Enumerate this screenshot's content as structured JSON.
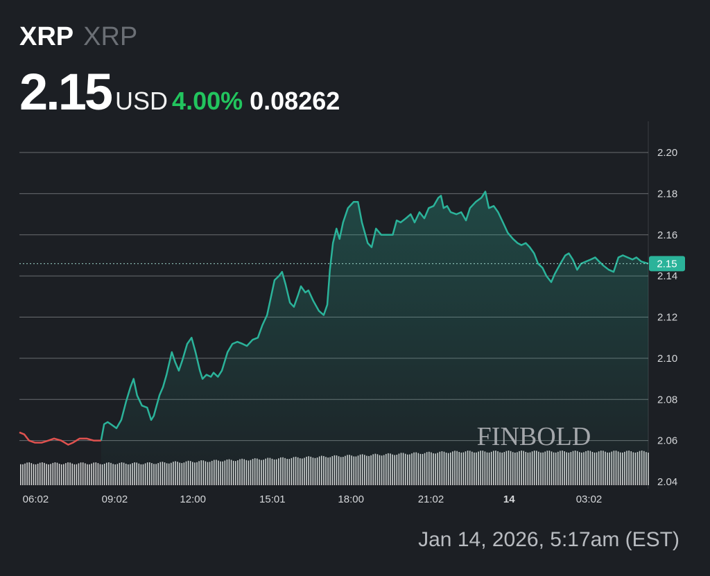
{
  "header": {
    "symbol": "XRP",
    "name": "XRP",
    "price": "2.15",
    "currency": "USD",
    "change_percent": "4.00%",
    "change_abs": "0.08262"
  },
  "timestamp": "Jan 14, 2026, 5:17am (EST)",
  "watermark": "FINBOLD",
  "colors": {
    "up": "#2bb39a",
    "down": "#e0524f",
    "background": "#1c1f24",
    "positive_text": "#22c55e"
  },
  "chart_data": {
    "type": "line",
    "title": "",
    "xlabel": "",
    "ylabel": "",
    "ylim": [
      2.04,
      2.2
    ],
    "y_ticks": [
      "2.04",
      "2.06",
      "2.08",
      "2.10",
      "2.12",
      "2.14",
      "2.16",
      "2.18",
      "2.20"
    ],
    "x_ticks": [
      {
        "label": "06:02",
        "time": "06:02",
        "bold": false
      },
      {
        "label": "09:02",
        "time": "09:02",
        "bold": false
      },
      {
        "label": "12:00",
        "time": "12:00",
        "bold": false
      },
      {
        "label": "15:01",
        "time": "15:01",
        "bold": false
      },
      {
        "label": "18:00",
        "time": "18:00",
        "bold": false
      },
      {
        "label": "21:02",
        "time": "21:02",
        "bold": false
      },
      {
        "label": "14",
        "time": "00:00",
        "bold": true
      },
      {
        "label": "03:02",
        "time": "03:02",
        "bold": false
      }
    ],
    "current_price_label": "2.15",
    "current_price": 2.146,
    "grid": true,
    "down_segment_until": "08:31",
    "series": [
      {
        "x": [
          "05:25",
          "05:36",
          "05:47",
          "06:00",
          "06:16",
          "06:31",
          "06:44",
          "07:00",
          "07:16",
          "07:27",
          "07:42",
          "07:58",
          "08:14",
          "08:31",
          "08:38",
          "08:46",
          "08:53",
          "09:06",
          "09:17",
          "09:28",
          "09:38",
          "09:45",
          "09:53",
          "10:04",
          "10:16",
          "10:25",
          "10:31",
          "10:44",
          "10:52",
          "11:00",
          "11:12",
          "11:20",
          "11:28",
          "11:36",
          "11:47",
          "11:57",
          "12:06",
          "12:16",
          "12:22",
          "12:31",
          "12:41",
          "12:47",
          "12:57",
          "13:06",
          "13:19",
          "13:30",
          "13:41",
          "13:53",
          "14:03",
          "14:16",
          "14:28",
          "14:38",
          "14:49",
          "14:57",
          "15:06",
          "15:16",
          "15:23",
          "15:31",
          "15:41",
          "15:50",
          "16:00",
          "16:06",
          "16:16",
          "16:23",
          "16:34",
          "16:47",
          "16:58",
          "17:06",
          "17:12",
          "17:19",
          "17:27",
          "17:34",
          "17:42",
          "17:53",
          "18:06",
          "18:16",
          "18:25",
          "18:38",
          "18:47",
          "18:57",
          "19:09",
          "19:22",
          "19:35",
          "19:44",
          "19:53",
          "20:05",
          "20:16",
          "20:25",
          "20:36",
          "20:47",
          "20:57",
          "21:08",
          "21:19",
          "21:25",
          "21:31",
          "21:39",
          "21:47",
          "22:00",
          "22:11",
          "22:22",
          "22:31",
          "22:44",
          "22:57",
          "23:06",
          "23:14",
          "23:25",
          "23:35",
          "23:46",
          "23:57",
          "00:09",
          "00:19",
          "00:28",
          "00:38",
          "00:47",
          "00:57",
          "01:06",
          "01:16",
          "01:25",
          "01:36",
          "01:44",
          "01:57",
          "02:08",
          "02:16",
          "02:25",
          "02:35",
          "02:44",
          "02:55",
          "03:06",
          "03:16",
          "03:25",
          "03:35",
          "03:47",
          "03:58",
          "04:09",
          "04:19",
          "04:30",
          "04:41",
          "04:50",
          "05:01",
          "05:17"
        ],
        "y": [
          2.064,
          2.063,
          2.06,
          2.059,
          2.059,
          2.06,
          2.061,
          2.06,
          2.058,
          2.059,
          2.061,
          2.061,
          2.06,
          2.06,
          2.068,
          2.069,
          2.068,
          2.066,
          2.07,
          2.079,
          2.086,
          2.09,
          2.082,
          2.077,
          2.076,
          2.07,
          2.072,
          2.082,
          2.086,
          2.092,
          2.103,
          2.098,
          2.094,
          2.099,
          2.107,
          2.11,
          2.103,
          2.094,
          2.09,
          2.092,
          2.091,
          2.093,
          2.091,
          2.094,
          2.103,
          2.107,
          2.108,
          2.107,
          2.106,
          2.109,
          2.11,
          2.116,
          2.121,
          2.129,
          2.138,
          2.14,
          2.142,
          2.136,
          2.127,
          2.125,
          2.131,
          2.135,
          2.132,
          2.133,
          2.128,
          2.123,
          2.121,
          2.126,
          2.143,
          2.156,
          2.163,
          2.158,
          2.166,
          2.173,
          2.176,
          2.176,
          2.166,
          2.156,
          2.154,
          2.163,
          2.16,
          2.16,
          2.16,
          2.167,
          2.166,
          2.168,
          2.17,
          2.166,
          2.171,
          2.168,
          2.173,
          2.174,
          2.178,
          2.179,
          2.173,
          2.174,
          2.171,
          2.17,
          2.171,
          2.167,
          2.173,
          2.176,
          2.178,
          2.181,
          2.173,
          2.174,
          2.171,
          2.166,
          2.161,
          2.158,
          2.156,
          2.155,
          2.156,
          2.154,
          2.151,
          2.146,
          2.144,
          2.14,
          2.137,
          2.141,
          2.146,
          2.15,
          2.151,
          2.148,
          2.143,
          2.146,
          2.147,
          2.148,
          2.149,
          2.147,
          2.145,
          2.143,
          2.142,
          2.149,
          2.15,
          2.149,
          2.148,
          2.149,
          2.147,
          2.146
        ]
      }
    ]
  }
}
